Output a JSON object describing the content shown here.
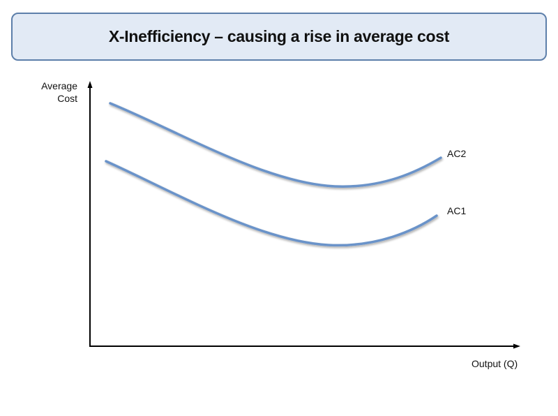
{
  "title": "X-Inefficiency – causing a rise in average cost",
  "axes": {
    "y_label_line1": "Average",
    "y_label_line2": "Cost",
    "x_label": "Output (Q)"
  },
  "curves": [
    {
      "name": "AC2",
      "color": "#6b93c9"
    },
    {
      "name": "AC1",
      "color": "#6b93c9"
    }
  ]
}
